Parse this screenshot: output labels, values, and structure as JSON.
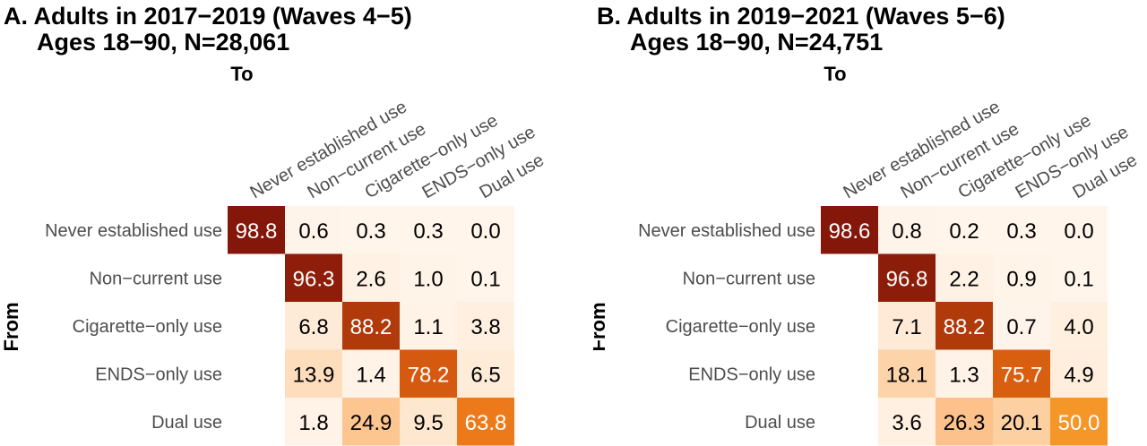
{
  "chart_data": [
    {
      "type": "heatmap",
      "title": "A. Adults in 2017−2019 (Waves 4−5)",
      "subtitle": "Ages 18−90, N=28,061",
      "xlabel": "To",
      "ylabel": "From",
      "categories": [
        "Never established use",
        "Non−current use",
        "Cigarette−only use",
        "ENDS−only use",
        "Dual use"
      ],
      "values": [
        [
          98.8,
          0.6,
          0.3,
          0.3,
          0.0
        ],
        [
          null,
          96.3,
          2.6,
          1.0,
          0.1
        ],
        [
          null,
          6.8,
          88.2,
          1.1,
          3.8
        ],
        [
          null,
          13.9,
          1.4,
          78.2,
          6.5
        ],
        [
          null,
          1.8,
          24.9,
          9.5,
          63.8
        ]
      ]
    },
    {
      "type": "heatmap",
      "title": "B. Adults in 2019−2021 (Waves 5−6)",
      "subtitle": "Ages 18−90, N=24,751",
      "xlabel": "To",
      "ylabel": "From",
      "categories": [
        "Never established use",
        "Non−current use",
        "Cigarette−only use",
        "ENDS−only use",
        "Dual use"
      ],
      "values": [
        [
          98.6,
          0.8,
          0.2,
          0.3,
          0.0
        ],
        [
          null,
          96.8,
          2.2,
          0.9,
          0.1
        ],
        [
          null,
          7.1,
          88.2,
          0.7,
          4.0
        ],
        [
          null,
          18.1,
          1.3,
          75.7,
          4.9
        ],
        [
          null,
          3.6,
          26.3,
          20.1,
          50.0
        ]
      ]
    }
  ]
}
